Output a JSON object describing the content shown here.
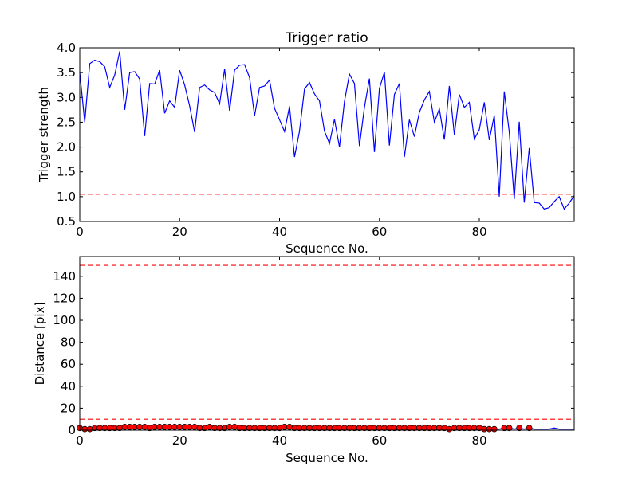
{
  "chart_data": [
    {
      "type": "line",
      "title": "Trigger ratio",
      "xlabel": "Sequence No.",
      "ylabel": "Trigger strength",
      "xlim": [
        0,
        99
      ],
      "ylim": [
        0.5,
        4.0
      ],
      "xticks": [
        "0",
        "20",
        "40",
        "60",
        "80"
      ],
      "xtick_values": [
        0,
        20,
        40,
        60,
        80
      ],
      "yticks": [
        "0.5",
        "1.0",
        "1.5",
        "2.0",
        "2.5",
        "3.0",
        "3.5",
        "4.0"
      ],
      "ytick_values": [
        0.5,
        1.0,
        1.5,
        2.0,
        2.5,
        3.0,
        3.5,
        4.0
      ],
      "line_color": "#0000ff",
      "threshold": 1.05,
      "threshold_color": "#ff0000",
      "series": [
        {
          "values": [
            3.5,
            2.5,
            3.68,
            3.75,
            3.72,
            3.62,
            3.2,
            3.45,
            3.93,
            2.75,
            3.5,
            3.52,
            3.37,
            2.22,
            3.28,
            3.27,
            3.55,
            2.68,
            2.93,
            2.8,
            3.55,
            3.25,
            2.83,
            2.3,
            3.2,
            3.25,
            3.15,
            3.1,
            2.87,
            3.57,
            2.73,
            3.55,
            3.65,
            3.66,
            3.4,
            2.63,
            3.2,
            3.23,
            3.35,
            2.78,
            2.55,
            2.31,
            2.82,
            1.8,
            2.32,
            3.17,
            3.3,
            3.07,
            2.93,
            2.32,
            2.07,
            2.56,
            2.0,
            2.92,
            3.47,
            3.28,
            2.02,
            2.8,
            3.38,
            1.9,
            3.18,
            3.51,
            2.03,
            3.06,
            3.28,
            1.8,
            2.55,
            2.21,
            2.7,
            2.95,
            3.12,
            2.5,
            2.77,
            2.15,
            3.23,
            2.25,
            3.06,
            2.8,
            2.9,
            2.16,
            2.35,
            2.9,
            2.14,
            2.64,
            1.0,
            3.12,
            2.3,
            0.95,
            2.51,
            0.88,
            1.98,
            0.88,
            0.87,
            0.75,
            0.78,
            0.9,
            1.0,
            0.75,
            0.87,
            1.02
          ]
        }
      ]
    },
    {
      "type": "scatter",
      "title": "",
      "xlabel": "Sequence No.",
      "ylabel": "Distance [pix]",
      "xlim": [
        0,
        99
      ],
      "ylim": [
        0,
        158
      ],
      "xticks": [
        "0",
        "20",
        "40",
        "60",
        "80"
      ],
      "xtick_values": [
        0,
        20,
        40,
        60,
        80
      ],
      "yticks": [
        "0",
        "20",
        "40",
        "60",
        "80",
        "100",
        "120",
        "140"
      ],
      "ytick_values": [
        0,
        20,
        40,
        60,
        80,
        100,
        120,
        140
      ],
      "line_color": "#0000ff",
      "marker_color": "#ff0000",
      "thresholds": [
        150,
        10
      ],
      "threshold_color": "#ff0000",
      "line_values": [
        2,
        1,
        1,
        2,
        2,
        2,
        2,
        2,
        2,
        3,
        3,
        3,
        3,
        3,
        2,
        3,
        3,
        3,
        3,
        3,
        3,
        3,
        3,
        3,
        2,
        2,
        3,
        2,
        2,
        2,
        3,
        3,
        2,
        2,
        2,
        2,
        2,
        2,
        2,
        2,
        2,
        3,
        3,
        2,
        2,
        2,
        2,
        2,
        2,
        2,
        2,
        2,
        2,
        2,
        2,
        2,
        2,
        2,
        2,
        2,
        2,
        2,
        2,
        2,
        2,
        2,
        2,
        2,
        2,
        2,
        2,
        2,
        2,
        2,
        1,
        2,
        2,
        2,
        2,
        2,
        2,
        1,
        1,
        1,
        1,
        2,
        2,
        1,
        2,
        1,
        2,
        1,
        1,
        1,
        1,
        2,
        1,
        1,
        1,
        1
      ],
      "marker_indices": [
        0,
        1,
        2,
        3,
        4,
        5,
        6,
        7,
        8,
        9,
        10,
        11,
        12,
        13,
        14,
        15,
        16,
        17,
        18,
        19,
        20,
        21,
        22,
        23,
        24,
        25,
        26,
        27,
        28,
        29,
        30,
        31,
        32,
        33,
        34,
        35,
        36,
        37,
        38,
        39,
        40,
        41,
        42,
        43,
        44,
        45,
        46,
        47,
        48,
        49,
        50,
        51,
        52,
        53,
        54,
        55,
        56,
        57,
        58,
        59,
        60,
        61,
        62,
        63,
        64,
        65,
        66,
        67,
        68,
        69,
        70,
        71,
        72,
        73,
        74,
        75,
        76,
        77,
        78,
        79,
        80,
        81,
        82,
        83,
        85,
        86,
        88,
        90
      ]
    }
  ]
}
